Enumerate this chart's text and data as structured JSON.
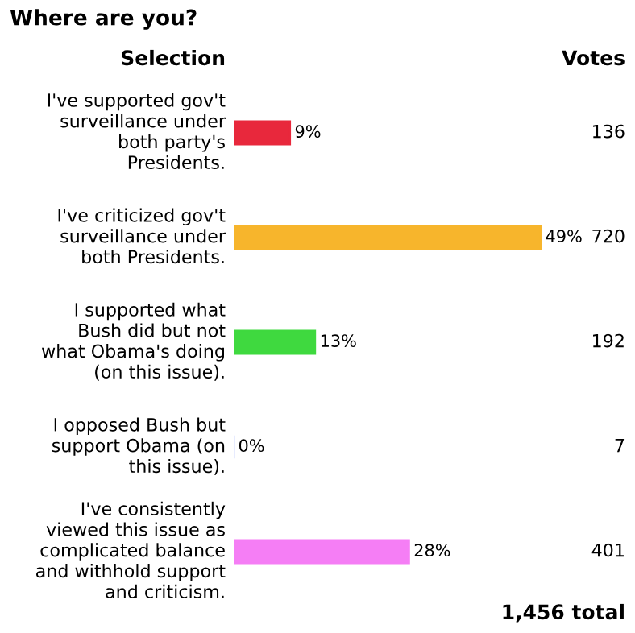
{
  "chart_data": {
    "type": "bar",
    "orientation": "horizontal",
    "title": "Where are you?",
    "categories": [
      "I've supported gov't\nsurveillance under\nboth party's\nPresidents.",
      "I've criticized gov't\nsurveillance under\nboth Presidents.",
      "I supported what\nBush did but not\nwhat Obama's doing\n(on this issue).",
      "I opposed Bush but\nsupport Obama (on\nthis issue).",
      "I've consistently\nviewed this issue as\ncomplicated balance\nand withhold support\nand criticism."
    ],
    "values": [
      9,
      49,
      13,
      0,
      28
    ],
    "colors": [
      "#e8283c",
      "#f7b52c",
      "#3fd93f",
      "#2448f0",
      "#f57ef5"
    ],
    "value_labels": [
      "9%",
      "49%",
      "13%",
      "0%",
      "28%"
    ],
    "tick_labels": false,
    "grid": false,
    "annotations": [
      "Selection",
      "Votes",
      "136",
      "720",
      "192",
      "7",
      "401",
      "1,456 total"
    ]
  }
}
